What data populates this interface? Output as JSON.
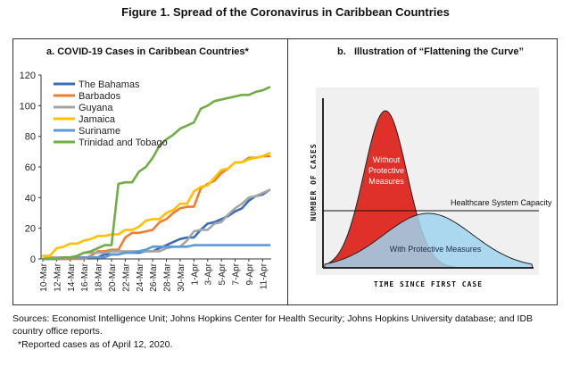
{
  "figure_title": "Figure 1. Spread of the Coronavirus in Caribbean Countries",
  "panel_a": {
    "title": "a. COVID-19 Cases in Caribbean Countries*"
  },
  "panel_b": {
    "title": "b.   Illustration of “Flattening the Curve”",
    "ylabel": "NUMBER OF CASES",
    "xlabel": "TIME SINCE FIRST CASE",
    "capacity_label": "Healthcare System Capacity",
    "without_label": [
      "Without",
      "Protective",
      "Measures"
    ],
    "with_label": "With Protective Measures",
    "colors": {
      "without": "#e0302a",
      "with": "#9fd4ee",
      "panel_bg": "#f0f0f0"
    }
  },
  "footer": {
    "sources": "Sources: Economist Intelligence Unit; Johns Hopkins Center for Health Security; Johns Hopkins University database; and IDB country office reports.",
    "note": "*Reported cases as of April 12, 2020."
  },
  "chart_data": [
    {
      "type": "line",
      "title": "a. COVID-19 Cases in Caribbean Countries*",
      "x": [
        "10-Mar",
        "11-Mar",
        "12-Mar",
        "13-Mar",
        "14-Mar",
        "15-Mar",
        "16-Mar",
        "17-Mar",
        "18-Mar",
        "19-Mar",
        "20-Mar",
        "21-Mar",
        "22-Mar",
        "23-Mar",
        "24-Mar",
        "25-Mar",
        "26-Mar",
        "27-Mar",
        "28-Mar",
        "29-Mar",
        "30-Mar",
        "31-Mar",
        "1-Apr",
        "2-Apr",
        "3-Apr",
        "4-Apr",
        "5-Apr",
        "6-Apr",
        "7-Apr",
        "8-Apr",
        "9-Apr",
        "10-Apr",
        "11-Apr",
        "12-Apr"
      ],
      "xticks": [
        "10-Mar",
        "12-Mar",
        "14-Mar",
        "16-Mar",
        "18-Mar",
        "20-Mar",
        "22-Mar",
        "24-Mar",
        "26-Mar",
        "28-Mar",
        "30-Mar",
        "1-Apr",
        "3-Apr",
        "5-Apr",
        "7-Apr",
        "9-Apr",
        "11-Apr"
      ],
      "ylim": [
        0,
        120
      ],
      "yticks": [
        0,
        20,
        40,
        60,
        80,
        100,
        120
      ],
      "legend": "top-left",
      "grid": false,
      "series": [
        {
          "name": "The Bahamas",
          "color": "#3b6cb7",
          "values": [
            0,
            0,
            0,
            0,
            0,
            1,
            1,
            1,
            1,
            3,
            3,
            3,
            4,
            4,
            4,
            5,
            5,
            7,
            9,
            11,
            13,
            14,
            14,
            19,
            23,
            24,
            26,
            28,
            31,
            33,
            38,
            41,
            42,
            45
          ]
        },
        {
          "name": "Barbados",
          "color": "#ed7d31",
          "values": [
            0,
            0,
            0,
            0,
            0,
            0,
            0,
            2,
            5,
            5,
            6,
            6,
            14,
            17,
            17,
            18,
            19,
            24,
            26,
            30,
            33,
            34,
            34,
            46,
            49,
            51,
            56,
            59,
            63,
            63,
            66,
            66,
            67,
            67
          ]
        },
        {
          "name": "Guyana",
          "color": "#a5a5a5",
          "values": [
            0,
            1,
            1,
            1,
            1,
            2,
            4,
            4,
            4,
            4,
            5,
            5,
            5,
            5,
            5,
            5,
            5,
            5,
            7,
            8,
            8,
            12,
            18,
            19,
            19,
            23,
            24,
            29,
            33,
            36,
            40,
            41,
            43,
            45
          ]
        },
        {
          "name": "Jamaica",
          "color": "#ffc000",
          "values": [
            2,
            2,
            7,
            8,
            10,
            10,
            12,
            13,
            15,
            15,
            16,
            16,
            19,
            19,
            21,
            25,
            26,
            26,
            30,
            32,
            36,
            36,
            44,
            47,
            48,
            53,
            58,
            59,
            63,
            63,
            65,
            66,
            67,
            69
          ]
        },
        {
          "name": "Suriname",
          "color": "#5b9bd5",
          "values": [
            0,
            0,
            0,
            1,
            1,
            1,
            1,
            1,
            1,
            1,
            3,
            3,
            4,
            4,
            5,
            6,
            8,
            8,
            8,
            8,
            8,
            8,
            9,
            9,
            9,
            9,
            9,
            9,
            9,
            9,
            9,
            9,
            9,
            9
          ]
        },
        {
          "name": "Trinidad and Tobago",
          "color": "#70ad47",
          "values": [
            0,
            0,
            0,
            1,
            1,
            2,
            4,
            5,
            7,
            9,
            9,
            49,
            50,
            50,
            57,
            60,
            66,
            74,
            78,
            81,
            85,
            87,
            89,
            98,
            100,
            103,
            104,
            105,
            106,
            107,
            107,
            109,
            110,
            112
          ]
        }
      ]
    },
    {
      "type": "area",
      "title": "b. Illustration of “Flattening the Curve”",
      "xlabel": "TIME SINCE FIRST CASE",
      "ylabel": "NUMBER OF CASES",
      "series": [
        {
          "name": "Without Protective Measures"
        },
        {
          "name": "With Protective Measures"
        }
      ],
      "annotations": [
        "Healthcare System Capacity"
      ]
    }
  ]
}
